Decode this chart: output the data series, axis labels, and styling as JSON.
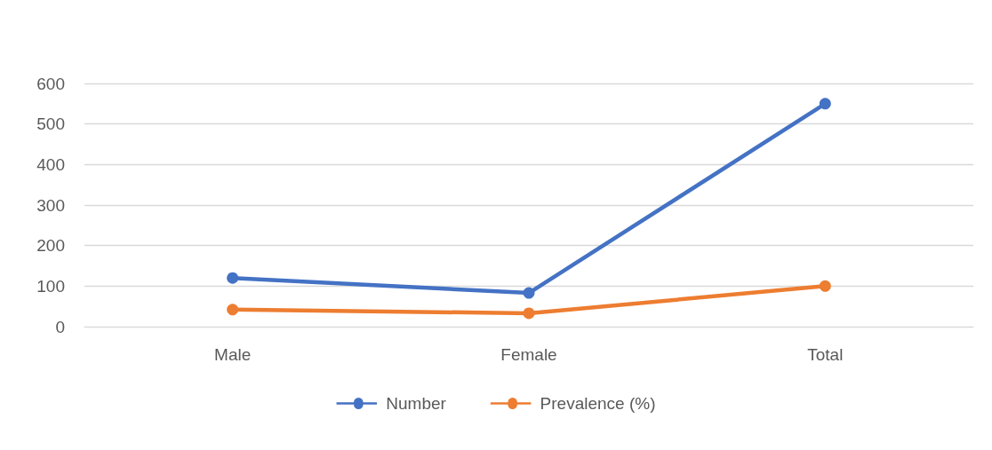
{
  "chart_data": {
    "type": "line",
    "categories": [
      "Male",
      "Female",
      "Total"
    ],
    "series": [
      {
        "name": "Number",
        "color": "#4472c4",
        "values": [
          120,
          83,
          550
        ]
      },
      {
        "name": "Prevalence (%)",
        "color": "#ed7d31",
        "values": [
          42,
          33,
          100
        ]
      }
    ],
    "ylim": [
      0,
      600
    ],
    "yticks": [
      0,
      100,
      200,
      300,
      400,
      500,
      600
    ],
    "grid": "y",
    "legend": "bottom",
    "marker": "circle",
    "line_style": "solid"
  }
}
